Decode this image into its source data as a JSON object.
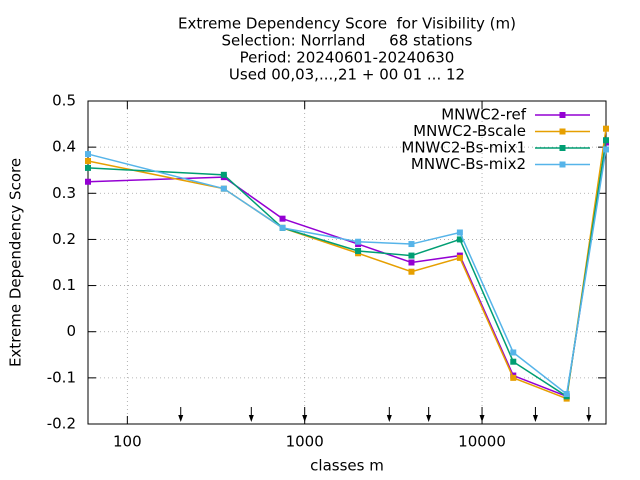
{
  "chart_data": {
    "type": "line",
    "title": [
      "Extreme Dependency Score  for Visibility (m)",
      "Selection: Norrland     68 stations",
      "Period: 20240601-20240630",
      "Used 00,03,...,21 + 00 01 ... 12"
    ],
    "x_label": "classes m",
    "y_label": "Extreme Dependency Score",
    "x": [
      60,
      350,
      750,
      2000,
      4000,
      7500,
      15000,
      30000,
      50000
    ],
    "series": [
      {
        "name": "MNWC2-ref",
        "color": "#9400d3",
        "values": [
          0.325,
          0.335,
          0.245,
          0.19,
          0.15,
          0.165,
          -0.095,
          -0.14,
          0.41
        ]
      },
      {
        "name": "MNWC2-Bscale",
        "color": "#e69f00",
        "values": [
          0.37,
          0.31,
          0.225,
          0.17,
          0.13,
          0.16,
          -0.1,
          -0.145,
          0.44
        ]
      },
      {
        "name": "MNWC2-Bs-mix1",
        "color": "#009e73",
        "values": [
          0.355,
          0.34,
          0.225,
          0.175,
          0.165,
          0.2,
          -0.065,
          -0.14,
          0.415
        ]
      },
      {
        "name": "MNWC-Bs-mix2",
        "color": "#56b4e9",
        "values": [
          0.385,
          0.31,
          0.225,
          0.195,
          0.19,
          0.215,
          -0.045,
          -0.135,
          0.395
        ]
      }
    ],
    "markers": [
      200,
      500,
      1000,
      3000,
      5000,
      10000,
      20000,
      40000
    ],
    "xlim": [
      60,
      50000
    ],
    "xticks": [
      100,
      1000,
      10000
    ],
    "xlog": true,
    "ylim": [
      -0.2,
      0.5
    ],
    "yticks": [
      0.5,
      0.4,
      0.3,
      0.2,
      0.1,
      0,
      -0.1,
      -0.2
    ],
    "grid": true,
    "legend": "top-right"
  }
}
